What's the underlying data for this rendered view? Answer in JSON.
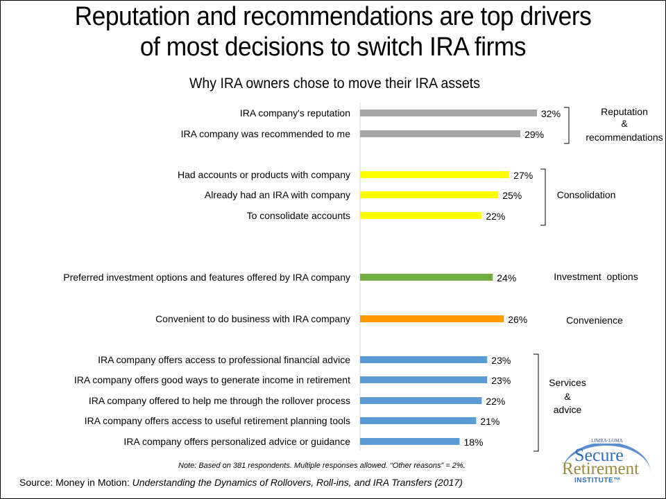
{
  "slide": {
    "title_line1": "Reputation and recommendations are top drivers",
    "title_line2": "of most decisions to switch IRA firms",
    "subtitle": "Why IRA owners chose to move their IRA assets",
    "note": "Note: Based on 381 respondents. Multiple responses allowed. “Other reasons” = 2%.",
    "source_prefix": "Source: Money in Motion:",
    "source_title": "Understanding the Dynamics of Rollovers, Roll-ins, and IRA Transfers (2017)"
  },
  "logo": {
    "top_text": "LIMRA·LOMA",
    "line1": "Secure",
    "line2": "Retirement",
    "line3": "INSTITUTE™"
  },
  "chart_data": {
    "type": "bar",
    "orientation": "horizontal",
    "title": "Why IRA owners chose to move their IRA assets",
    "xlabel": "",
    "ylabel": "",
    "xlim": [
      0,
      32
    ],
    "grid": false,
    "value_suffix": "%",
    "groups": [
      {
        "name": "Reputation & recommendations",
        "label_lines": [
          "Reputation",
          "&",
          "recommendations"
        ],
        "color": "#a5a5a5",
        "bracket": true,
        "items": [
          {
            "category": "IRA company's reputation",
            "value": 32
          },
          {
            "category": "IRA company was recommended to me",
            "value": 29
          }
        ]
      },
      {
        "name": "Consolidation",
        "label_lines": [
          "Consolidation"
        ],
        "color": "#ffff00",
        "bracket": true,
        "items": [
          {
            "category": "Had accounts or products with  company",
            "value": 27
          },
          {
            "category": "Already had an IRA with company",
            "value": 25
          },
          {
            "category": "To consolidate accounts",
            "value": 22
          }
        ]
      },
      {
        "name": "Investment options",
        "label_lines": [
          "Investment  options"
        ],
        "color": "#70ad47",
        "bracket": false,
        "items": [
          {
            "category": "Preferred investment options and features offered by IRA company",
            "value": 24
          }
        ]
      },
      {
        "name": "Convenience",
        "label_lines": [
          "Convenience"
        ],
        "color": "#ff9900",
        "bracket": false,
        "items": [
          {
            "category": "Convenient to do business with IRA company",
            "value": 26
          }
        ]
      },
      {
        "name": "Services & advice",
        "label_lines": [
          "Services",
          "&",
          "advice"
        ],
        "color": "#5b9bd5",
        "bracket": true,
        "items": [
          {
            "category": "IRA company offers access to professional financial advice",
            "value": 23
          },
          {
            "category": "IRA company offers good ways to generate income in retirement",
            "value": 23
          },
          {
            "category": "IRA company offered to help me through the rollover process",
            "value": 22
          },
          {
            "category": "IRA company offers access to useful retirement planning tools",
            "value": 21
          },
          {
            "category": "IRA company offers personalized advice or guidance",
            "value": 18
          }
        ]
      }
    ]
  }
}
